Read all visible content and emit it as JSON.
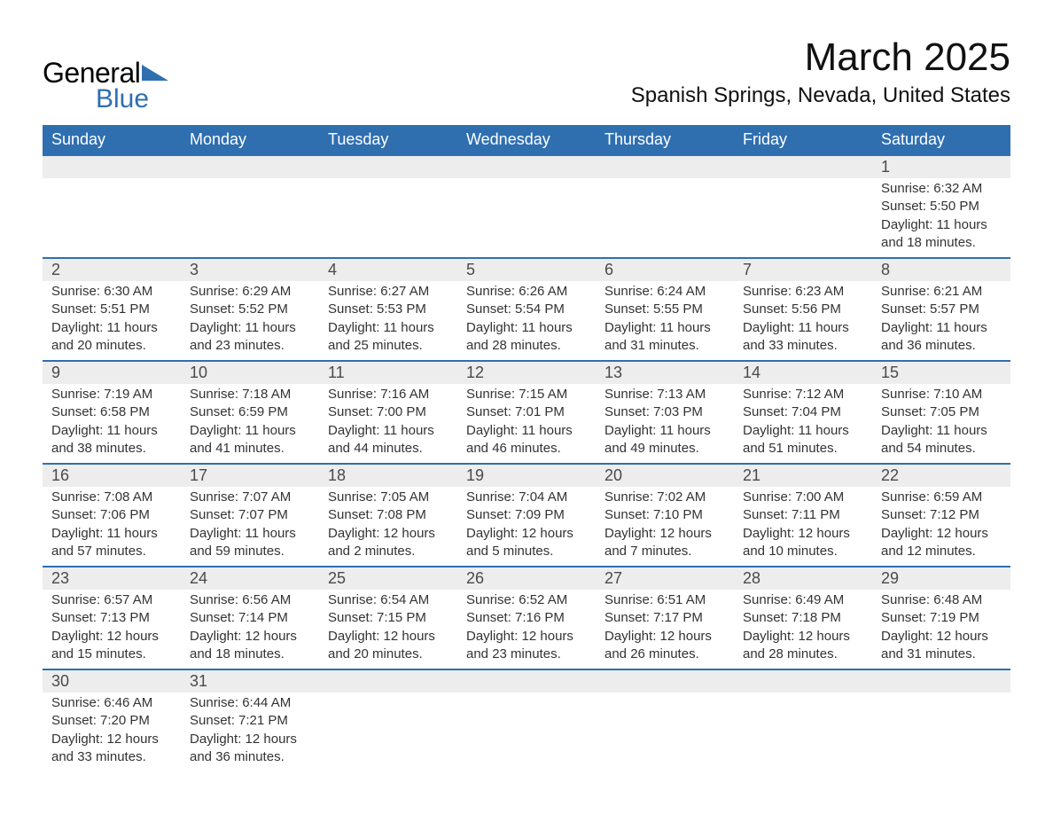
{
  "brand": {
    "text_general": "General",
    "text_blue": "Blue",
    "triangle_color": "#2f6fb0"
  },
  "header": {
    "month_title": "March 2025",
    "location": "Spanish Springs, Nevada, United States"
  },
  "colors": {
    "header_bg": "#2f6fb0",
    "header_text": "#ffffff",
    "daynum_bg": "#ededed",
    "daynum_border_top": "#2f6fb0",
    "body_text": "#333333",
    "page_bg": "#ffffff"
  },
  "columns": [
    "Sunday",
    "Monday",
    "Tuesday",
    "Wednesday",
    "Thursday",
    "Friday",
    "Saturday"
  ],
  "weeks": [
    [
      null,
      null,
      null,
      null,
      null,
      null,
      {
        "n": "1",
        "sr": "Sunrise: 6:32 AM",
        "ss": "Sunset: 5:50 PM",
        "d1": "Daylight: 11 hours",
        "d2": "and 18 minutes."
      }
    ],
    [
      {
        "n": "2",
        "sr": "Sunrise: 6:30 AM",
        "ss": "Sunset: 5:51 PM",
        "d1": "Daylight: 11 hours",
        "d2": "and 20 minutes."
      },
      {
        "n": "3",
        "sr": "Sunrise: 6:29 AM",
        "ss": "Sunset: 5:52 PM",
        "d1": "Daylight: 11 hours",
        "d2": "and 23 minutes."
      },
      {
        "n": "4",
        "sr": "Sunrise: 6:27 AM",
        "ss": "Sunset: 5:53 PM",
        "d1": "Daylight: 11 hours",
        "d2": "and 25 minutes."
      },
      {
        "n": "5",
        "sr": "Sunrise: 6:26 AM",
        "ss": "Sunset: 5:54 PM",
        "d1": "Daylight: 11 hours",
        "d2": "and 28 minutes."
      },
      {
        "n": "6",
        "sr": "Sunrise: 6:24 AM",
        "ss": "Sunset: 5:55 PM",
        "d1": "Daylight: 11 hours",
        "d2": "and 31 minutes."
      },
      {
        "n": "7",
        "sr": "Sunrise: 6:23 AM",
        "ss": "Sunset: 5:56 PM",
        "d1": "Daylight: 11 hours",
        "d2": "and 33 minutes."
      },
      {
        "n": "8",
        "sr": "Sunrise: 6:21 AM",
        "ss": "Sunset: 5:57 PM",
        "d1": "Daylight: 11 hours",
        "d2": "and 36 minutes."
      }
    ],
    [
      {
        "n": "9",
        "sr": "Sunrise: 7:19 AM",
        "ss": "Sunset: 6:58 PM",
        "d1": "Daylight: 11 hours",
        "d2": "and 38 minutes."
      },
      {
        "n": "10",
        "sr": "Sunrise: 7:18 AM",
        "ss": "Sunset: 6:59 PM",
        "d1": "Daylight: 11 hours",
        "d2": "and 41 minutes."
      },
      {
        "n": "11",
        "sr": "Sunrise: 7:16 AM",
        "ss": "Sunset: 7:00 PM",
        "d1": "Daylight: 11 hours",
        "d2": "and 44 minutes."
      },
      {
        "n": "12",
        "sr": "Sunrise: 7:15 AM",
        "ss": "Sunset: 7:01 PM",
        "d1": "Daylight: 11 hours",
        "d2": "and 46 minutes."
      },
      {
        "n": "13",
        "sr": "Sunrise: 7:13 AM",
        "ss": "Sunset: 7:03 PM",
        "d1": "Daylight: 11 hours",
        "d2": "and 49 minutes."
      },
      {
        "n": "14",
        "sr": "Sunrise: 7:12 AM",
        "ss": "Sunset: 7:04 PM",
        "d1": "Daylight: 11 hours",
        "d2": "and 51 minutes."
      },
      {
        "n": "15",
        "sr": "Sunrise: 7:10 AM",
        "ss": "Sunset: 7:05 PM",
        "d1": "Daylight: 11 hours",
        "d2": "and 54 minutes."
      }
    ],
    [
      {
        "n": "16",
        "sr": "Sunrise: 7:08 AM",
        "ss": "Sunset: 7:06 PM",
        "d1": "Daylight: 11 hours",
        "d2": "and 57 minutes."
      },
      {
        "n": "17",
        "sr": "Sunrise: 7:07 AM",
        "ss": "Sunset: 7:07 PM",
        "d1": "Daylight: 11 hours",
        "d2": "and 59 minutes."
      },
      {
        "n": "18",
        "sr": "Sunrise: 7:05 AM",
        "ss": "Sunset: 7:08 PM",
        "d1": "Daylight: 12 hours",
        "d2": "and 2 minutes."
      },
      {
        "n": "19",
        "sr": "Sunrise: 7:04 AM",
        "ss": "Sunset: 7:09 PM",
        "d1": "Daylight: 12 hours",
        "d2": "and 5 minutes."
      },
      {
        "n": "20",
        "sr": "Sunrise: 7:02 AM",
        "ss": "Sunset: 7:10 PM",
        "d1": "Daylight: 12 hours",
        "d2": "and 7 minutes."
      },
      {
        "n": "21",
        "sr": "Sunrise: 7:00 AM",
        "ss": "Sunset: 7:11 PM",
        "d1": "Daylight: 12 hours",
        "d2": "and 10 minutes."
      },
      {
        "n": "22",
        "sr": "Sunrise: 6:59 AM",
        "ss": "Sunset: 7:12 PM",
        "d1": "Daylight: 12 hours",
        "d2": "and 12 minutes."
      }
    ],
    [
      {
        "n": "23",
        "sr": "Sunrise: 6:57 AM",
        "ss": "Sunset: 7:13 PM",
        "d1": "Daylight: 12 hours",
        "d2": "and 15 minutes."
      },
      {
        "n": "24",
        "sr": "Sunrise: 6:56 AM",
        "ss": "Sunset: 7:14 PM",
        "d1": "Daylight: 12 hours",
        "d2": "and 18 minutes."
      },
      {
        "n": "25",
        "sr": "Sunrise: 6:54 AM",
        "ss": "Sunset: 7:15 PM",
        "d1": "Daylight: 12 hours",
        "d2": "and 20 minutes."
      },
      {
        "n": "26",
        "sr": "Sunrise: 6:52 AM",
        "ss": "Sunset: 7:16 PM",
        "d1": "Daylight: 12 hours",
        "d2": "and 23 minutes."
      },
      {
        "n": "27",
        "sr": "Sunrise: 6:51 AM",
        "ss": "Sunset: 7:17 PM",
        "d1": "Daylight: 12 hours",
        "d2": "and 26 minutes."
      },
      {
        "n": "28",
        "sr": "Sunrise: 6:49 AM",
        "ss": "Sunset: 7:18 PM",
        "d1": "Daylight: 12 hours",
        "d2": "and 28 minutes."
      },
      {
        "n": "29",
        "sr": "Sunrise: 6:48 AM",
        "ss": "Sunset: 7:19 PM",
        "d1": "Daylight: 12 hours",
        "d2": "and 31 minutes."
      }
    ],
    [
      {
        "n": "30",
        "sr": "Sunrise: 6:46 AM",
        "ss": "Sunset: 7:20 PM",
        "d1": "Daylight: 12 hours",
        "d2": "and 33 minutes."
      },
      {
        "n": "31",
        "sr": "Sunrise: 6:44 AM",
        "ss": "Sunset: 7:21 PM",
        "d1": "Daylight: 12 hours",
        "d2": "and 36 minutes."
      },
      null,
      null,
      null,
      null,
      null
    ]
  ]
}
